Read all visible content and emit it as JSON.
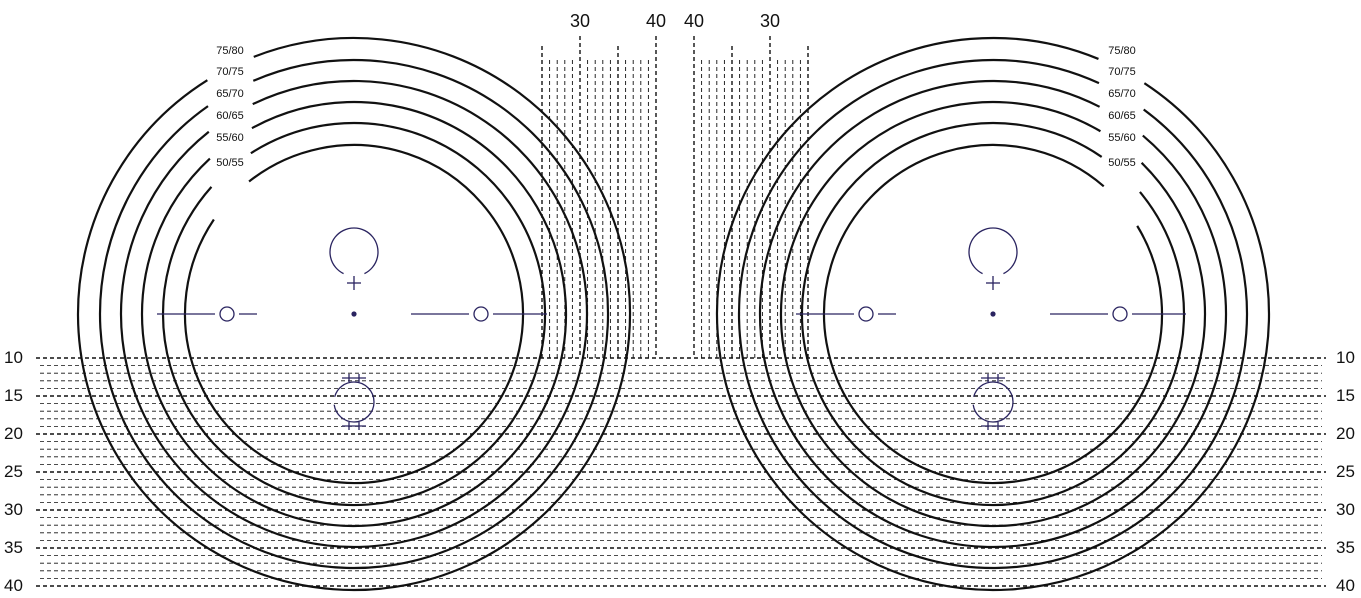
{
  "ring_labels": [
    "75/80",
    "70/75",
    "65/70",
    "60/65",
    "55/60",
    "50/55"
  ],
  "horizontal_scale": {
    "left_labels": [
      "10",
      "15",
      "20",
      "25",
      "30",
      "35",
      "40"
    ],
    "right_labels": [
      "10",
      "15",
      "20",
      "25",
      "30",
      "35",
      "40"
    ]
  },
  "vertical_scale": {
    "left_group_labels": [
      "30",
      "40"
    ],
    "right_group_labels": [
      "40",
      "30"
    ]
  },
  "colors": {
    "lines": "#111111",
    "marks": "#2a2460",
    "background": "#ffffff"
  },
  "icons": [
    "centre-dot",
    "circle-with-plus",
    "side-target",
    "bulb-symbol"
  ]
}
